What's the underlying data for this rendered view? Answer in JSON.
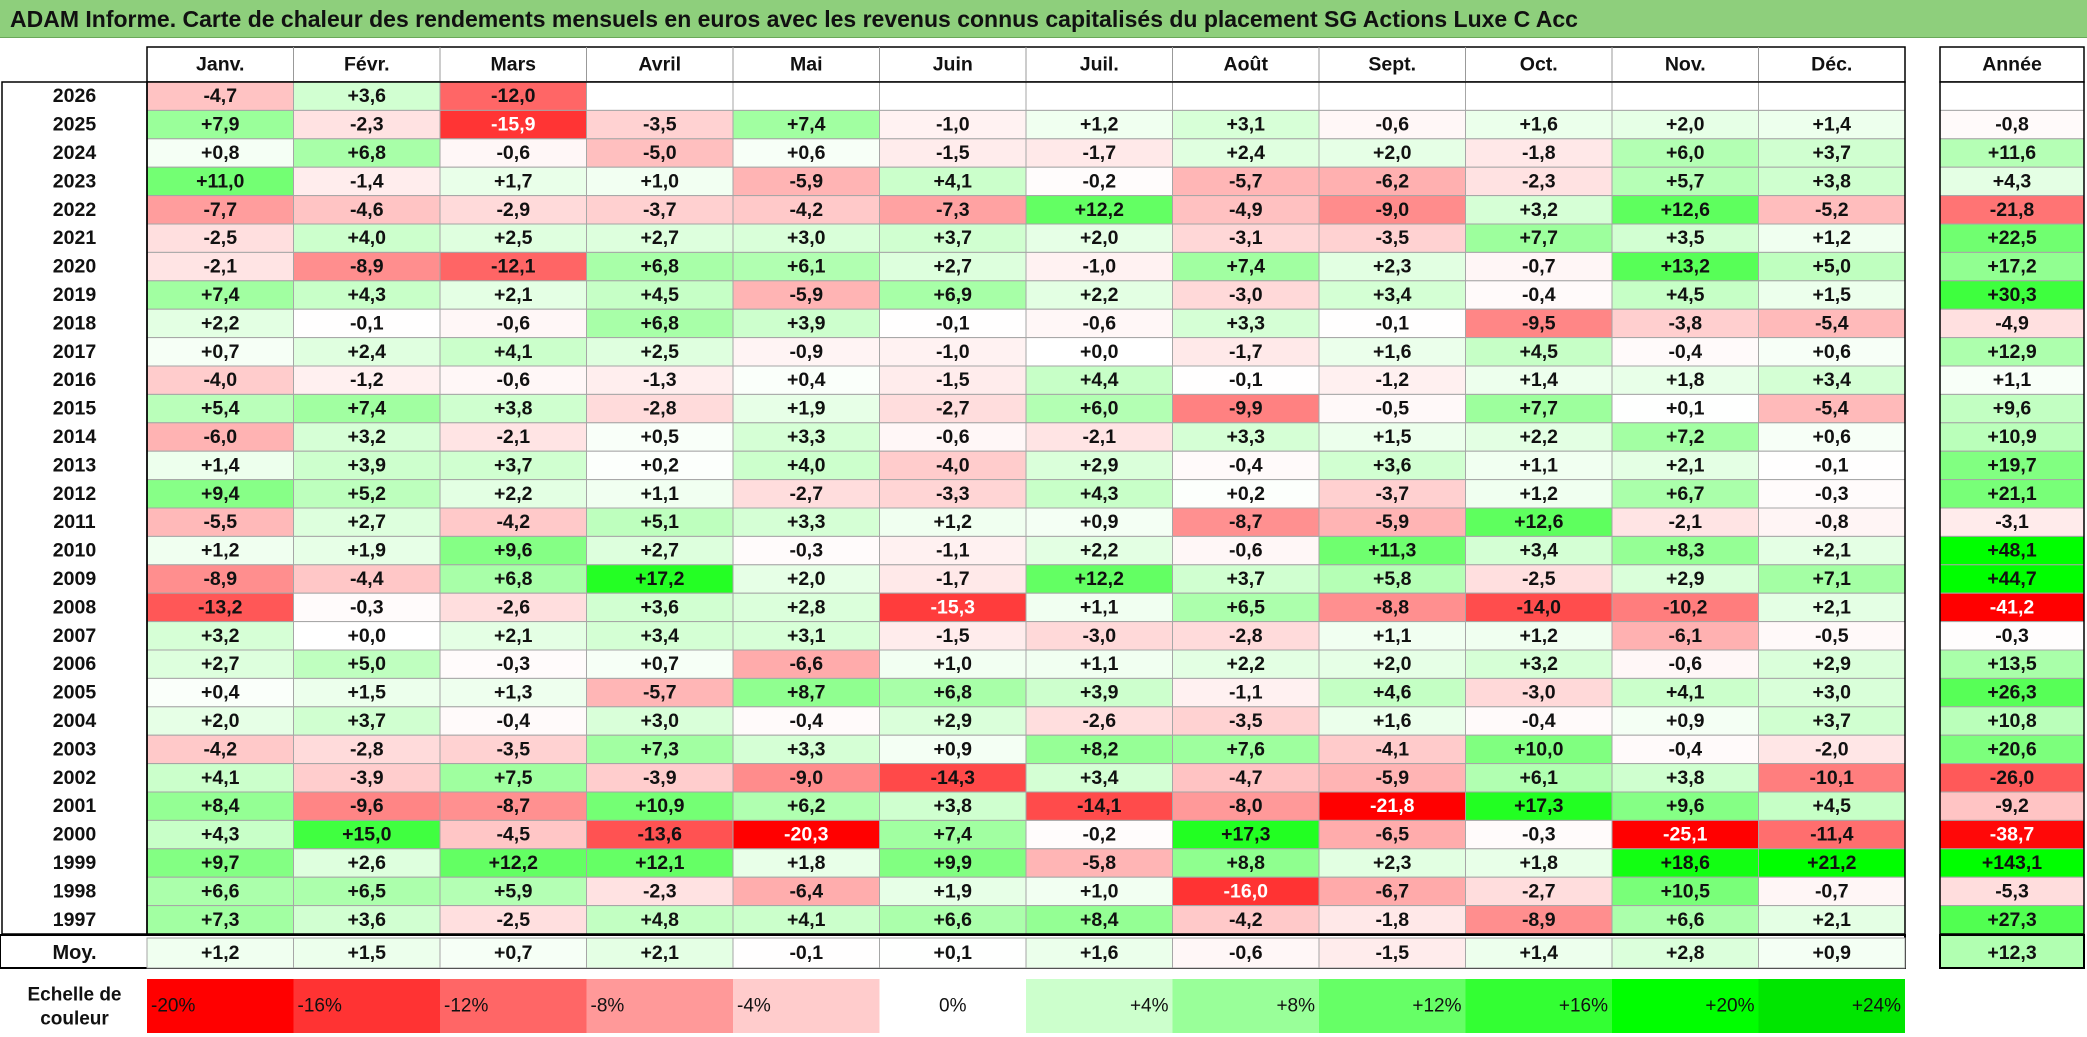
{
  "title": "ADAM Informe. Carte de chaleur des rendements mensuels en euros avec les revenus connus capitalisés du placement SG Actions Luxe C Acc",
  "chart_data": {
    "type": "heatmap",
    "columns": [
      "Janv.",
      "Févr.",
      "Mars",
      "Avril",
      "Mai",
      "Juin",
      "Juil.",
      "Août",
      "Sept.",
      "Oct.",
      "Nov.",
      "Déc."
    ],
    "year_header": "Année",
    "rows": [
      {
        "year": "2026",
        "values": [
          "-4,7",
          "+3,6",
          "-12,0",
          "",
          "",
          "",
          "",
          "",
          "",
          "",
          "",
          ""
        ],
        "annual": ""
      },
      {
        "year": "2025",
        "values": [
          "+7,9",
          "-2,3",
          "-15,9",
          "-3,5",
          "+7,4",
          "-1,0",
          "+1,2",
          "+3,1",
          "-0,6",
          "+1,6",
          "+2,0",
          "+1,4"
        ],
        "annual": "-0,8"
      },
      {
        "year": "2024",
        "values": [
          "+0,8",
          "+6,8",
          "-0,6",
          "-5,0",
          "+0,6",
          "-1,5",
          "-1,7",
          "+2,4",
          "+2,0",
          "-1,8",
          "+6,0",
          "+3,7"
        ],
        "annual": "+11,6"
      },
      {
        "year": "2023",
        "values": [
          "+11,0",
          "-1,4",
          "+1,7",
          "+1,0",
          "-5,9",
          "+4,1",
          "-0,2",
          "-5,7",
          "-6,2",
          "-2,3",
          "+5,7",
          "+3,8"
        ],
        "annual": "+4,3"
      },
      {
        "year": "2022",
        "values": [
          "-7,7",
          "-4,6",
          "-2,9",
          "-3,7",
          "-4,2",
          "-7,3",
          "+12,2",
          "-4,9",
          "-9,0",
          "+3,2",
          "+12,6",
          "-5,2"
        ],
        "annual": "-21,8"
      },
      {
        "year": "2021",
        "values": [
          "-2,5",
          "+4,0",
          "+2,5",
          "+2,7",
          "+3,0",
          "+3,7",
          "+2,0",
          "-3,1",
          "-3,5",
          "+7,7",
          "+3,5",
          "+1,2"
        ],
        "annual": "+22,5"
      },
      {
        "year": "2020",
        "values": [
          "-2,1",
          "-8,9",
          "-12,1",
          "+6,8",
          "+6,1",
          "+2,7",
          "-1,0",
          "+7,4",
          "+2,3",
          "-0,7",
          "+13,2",
          "+5,0"
        ],
        "annual": "+17,2"
      },
      {
        "year": "2019",
        "values": [
          "+7,4",
          "+4,3",
          "+2,1",
          "+4,5",
          "-5,9",
          "+6,9",
          "+2,2",
          "-3,0",
          "+3,4",
          "-0,4",
          "+4,5",
          "+1,5"
        ],
        "annual": "+30,3"
      },
      {
        "year": "2018",
        "values": [
          "+2,2",
          "-0,1",
          "-0,6",
          "+6,8",
          "+3,9",
          "-0,1",
          "-0,6",
          "+3,3",
          "-0,1",
          "-9,5",
          "-3,8",
          "-5,4"
        ],
        "annual": "-4,9"
      },
      {
        "year": "2017",
        "values": [
          "+0,7",
          "+2,4",
          "+4,1",
          "+2,5",
          "-0,9",
          "-1,0",
          "+0,0",
          "-1,7",
          "+1,6",
          "+4,5",
          "-0,4",
          "+0,6"
        ],
        "annual": "+12,9"
      },
      {
        "year": "2016",
        "values": [
          "-4,0",
          "-1,2",
          "-0,6",
          "-1,3",
          "+0,4",
          "-1,5",
          "+4,4",
          "-0,1",
          "-1,2",
          "+1,4",
          "+1,8",
          "+3,4"
        ],
        "annual": "+1,1"
      },
      {
        "year": "2015",
        "values": [
          "+5,4",
          "+7,4",
          "+3,8",
          "-2,8",
          "+1,9",
          "-2,7",
          "+6,0",
          "-9,9",
          "-0,5",
          "+7,7",
          "+0,1",
          "-5,4"
        ],
        "annual": "+9,6"
      },
      {
        "year": "2014",
        "values": [
          "-6,0",
          "+3,2",
          "-2,1",
          "+0,5",
          "+3,3",
          "-0,6",
          "-2,1",
          "+3,3",
          "+1,5",
          "+2,2",
          "+7,2",
          "+0,6"
        ],
        "annual": "+10,9"
      },
      {
        "year": "2013",
        "values": [
          "+1,4",
          "+3,9",
          "+3,7",
          "+0,2",
          "+4,0",
          "-4,0",
          "+2,9",
          "-0,4",
          "+3,6",
          "+1,1",
          "+2,1",
          "-0,1"
        ],
        "annual": "+19,7"
      },
      {
        "year": "2012",
        "values": [
          "+9,4",
          "+5,2",
          "+2,2",
          "+1,1",
          "-2,7",
          "-3,3",
          "+4,3",
          "+0,2",
          "-3,7",
          "+1,2",
          "+6,7",
          "-0,3"
        ],
        "annual": "+21,1"
      },
      {
        "year": "2011",
        "values": [
          "-5,5",
          "+2,7",
          "-4,2",
          "+5,1",
          "+3,3",
          "+1,2",
          "+0,9",
          "-8,7",
          "-5,9",
          "+12,6",
          "-2,1",
          "-0,8"
        ],
        "annual": "-3,1"
      },
      {
        "year": "2010",
        "values": [
          "+1,2",
          "+1,9",
          "+9,6",
          "+2,7",
          "-0,3",
          "-1,1",
          "+2,2",
          "-0,6",
          "+11,3",
          "+3,4",
          "+8,3",
          "+2,1"
        ],
        "annual": "+48,1"
      },
      {
        "year": "2009",
        "values": [
          "-8,9",
          "-4,4",
          "+6,8",
          "+17,2",
          "+2,0",
          "-1,7",
          "+12,2",
          "+3,7",
          "+5,8",
          "-2,5",
          "+2,9",
          "+7,1"
        ],
        "annual": "+44,7"
      },
      {
        "year": "2008",
        "values": [
          "-13,2",
          "-0,3",
          "-2,6",
          "+3,6",
          "+2,8",
          "-15,3",
          "+1,1",
          "+6,5",
          "-8,8",
          "-14,0",
          "-10,2",
          "+2,1"
        ],
        "annual": "-41,2"
      },
      {
        "year": "2007",
        "values": [
          "+3,2",
          "+0,0",
          "+2,1",
          "+3,4",
          "+3,1",
          "-1,5",
          "-3,0",
          "-2,8",
          "+1,1",
          "+1,2",
          "-6,1",
          "-0,5"
        ],
        "annual": "-0,3"
      },
      {
        "year": "2006",
        "values": [
          "+2,7",
          "+5,0",
          "-0,3",
          "+0,7",
          "-6,6",
          "+1,0",
          "+1,1",
          "+2,2",
          "+2,0",
          "+3,2",
          "-0,6",
          "+2,9"
        ],
        "annual": "+13,5"
      },
      {
        "year": "2005",
        "values": [
          "+0,4",
          "+1,5",
          "+1,3",
          "-5,7",
          "+8,7",
          "+6,8",
          "+3,9",
          "-1,1",
          "+4,6",
          "-3,0",
          "+4,1",
          "+3,0"
        ],
        "annual": "+26,3"
      },
      {
        "year": "2004",
        "values": [
          "+2,0",
          "+3,7",
          "-0,4",
          "+3,0",
          "-0,4",
          "+2,9",
          "-2,6",
          "-3,5",
          "+1,6",
          "-0,4",
          "+0,9",
          "+3,7"
        ],
        "annual": "+10,8"
      },
      {
        "year": "2003",
        "values": [
          "-4,2",
          "-2,8",
          "-3,5",
          "+7,3",
          "+3,3",
          "+0,9",
          "+8,2",
          "+7,6",
          "-4,1",
          "+10,0",
          "-0,4",
          "-2,0"
        ],
        "annual": "+20,6"
      },
      {
        "year": "2002",
        "values": [
          "+4,1",
          "-3,9",
          "+7,5",
          "-3,9",
          "-9,0",
          "-14,3",
          "+3,4",
          "-4,7",
          "-5,9",
          "+6,1",
          "+3,8",
          "-10,1"
        ],
        "annual": "-26,0"
      },
      {
        "year": "2001",
        "values": [
          "+8,4",
          "-9,6",
          "-8,7",
          "+10,9",
          "+6,2",
          "+3,8",
          "-14,1",
          "-8,0",
          "-21,8",
          "+17,3",
          "+9,6",
          "+4,5"
        ],
        "annual": "-9,2"
      },
      {
        "year": "2000",
        "values": [
          "+4,3",
          "+15,0",
          "-4,5",
          "-13,6",
          "-20,3",
          "+7,4",
          "-0,2",
          "+17,3",
          "-6,5",
          "-0,3",
          "-25,1",
          "-11,4"
        ],
        "annual": "-38,7"
      },
      {
        "year": "1999",
        "values": [
          "+9,7",
          "+2,6",
          "+12,2",
          "+12,1",
          "+1,8",
          "+9,9",
          "-5,8",
          "+8,8",
          "+2,3",
          "+1,8",
          "+18,6",
          "+21,2"
        ],
        "annual": "+143,1"
      },
      {
        "year": "1998",
        "values": [
          "+6,6",
          "+6,5",
          "+5,9",
          "-2,3",
          "-6,4",
          "+1,9",
          "+1,0",
          "-16,0",
          "-6,7",
          "-2,7",
          "+10,5",
          "-0,7"
        ],
        "annual": "-5,3"
      },
      {
        "year": "1997",
        "values": [
          "+7,3",
          "+3,6",
          "-2,5",
          "+4,8",
          "+4,1",
          "+6,6",
          "+8,4",
          "-4,2",
          "-1,8",
          "-8,9",
          "+6,6",
          "+2,1"
        ],
        "annual": "+27,3"
      }
    ],
    "average": {
      "label": "Moy.",
      "values": [
        "+1,2",
        "+1,5",
        "+0,7",
        "+2,1",
        "-0,1",
        "+0,1",
        "+1,6",
        "-0,6",
        "-1,5",
        "+1,4",
        "+2,8",
        "+0,9"
      ],
      "annual": "+12,3"
    },
    "scale": {
      "label_line1": "Echelle de",
      "label_line2": "couleur",
      "steps": [
        {
          "label": "-20%",
          "value": -20,
          "color": "#ff0000"
        },
        {
          "label": "-16%",
          "value": -16,
          "color": "#ff3333"
        },
        {
          "label": "-12%",
          "value": -12,
          "color": "#ff6666"
        },
        {
          "label": "-8%",
          "value": -8,
          "color": "#ff9999"
        },
        {
          "label": "-4%",
          "value": -4,
          "color": "#ffcccc"
        },
        {
          "label": "0%",
          "value": 0,
          "color": "#ffffff"
        },
        {
          "label": "+4%",
          "value": 4,
          "color": "#ccffcc"
        },
        {
          "label": "+8%",
          "value": 8,
          "color": "#99ff99"
        },
        {
          "label": "+12%",
          "value": 12,
          "color": "#66ff66"
        },
        {
          "label": "+16%",
          "value": 16,
          "color": "#33ff33"
        },
        {
          "label": "+20%",
          "value": 20,
          "color": "#00ff00"
        },
        {
          "label": "+24%",
          "value": 24,
          "color": "#00e600"
        }
      ]
    },
    "annual_scale_factor": 2,
    "colors": {
      "title_bar": "#8ecf7c",
      "border": "#999999",
      "frame": "#000000"
    }
  }
}
